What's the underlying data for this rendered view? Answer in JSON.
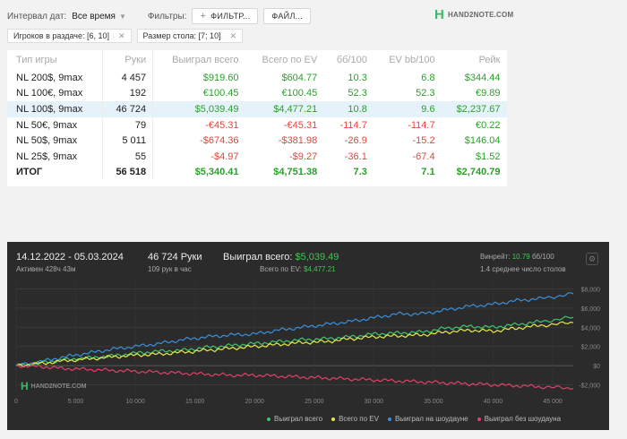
{
  "filters": {
    "date_interval_label": "Интервал дат:",
    "date_interval_value": "Все время",
    "filters_label": "Фильтры:",
    "filter_button": "ФИЛЬТР...",
    "file_button": "ФАЙЛ..."
  },
  "brand": {
    "name": "HAND2NOTE.COM",
    "mark": "H"
  },
  "chips": [
    {
      "label": "Игроков в раздаче: [6, 10]"
    },
    {
      "label": "Размер стола: [7; 10]"
    }
  ],
  "table": {
    "headers": [
      "Тип игры",
      "Руки",
      "Выиграл всего",
      "Всего по EV",
      "бб/100",
      "EV bb/100",
      "Рейк"
    ],
    "rows": [
      [
        "NL 200$, 9max",
        "4 457",
        "$919.60",
        "$604.77",
        "10.3",
        "6.8",
        "$344.44"
      ],
      [
        "NL 100€, 9max",
        "192",
        "€100.45",
        "€100.45",
        "52.3",
        "52.3",
        "€9.89"
      ],
      [
        "NL 100$, 9max",
        "46 724",
        "$5,039.49",
        "$4,477.21",
        "10.8",
        "9.6",
        "$2,237.67"
      ],
      [
        "NL 50€, 9max",
        "79",
        "-€45.31",
        "-€45.31",
        "-114.7",
        "-114.7",
        "€0.22"
      ],
      [
        "NL 50$, 9max",
        "5 011",
        "-$674.36",
        "-$381.98",
        "-26.9",
        "-15.2",
        "$146.04"
      ],
      [
        "NL 25$, 9max",
        "55",
        "-$4.97",
        "-$9.27",
        "-36.1",
        "-67.4",
        "$1.52"
      ]
    ],
    "total": [
      "ИТОГ",
      "56 518",
      "$5,340.41",
      "$4,751.38",
      "7.3",
      "7.1",
      "$2,740.79"
    ]
  },
  "graph": {
    "date_range": "14.12.2022 - 05.03.2024",
    "active": "Активен 428ч 43м",
    "hands": "46 724 Руки",
    "hands_per_hour": "109 рук в час",
    "won_label": "Выиграл всего: ",
    "won_value": "$5,039.49",
    "ev_label": "Всего по EV: ",
    "ev_value": "$4,477.21",
    "winrate_label": "Винрейт: ",
    "winrate_value": "10.79",
    "winrate_unit": " бб/100",
    "tables": "1.4 среднее число столов",
    "legend": [
      {
        "label": "Выиграл всего",
        "color": "#3ec46d"
      },
      {
        "label": "Всего по EV",
        "color": "#e8e84a"
      },
      {
        "label": "Выиграл на шоудауне",
        "color": "#3a8fd9"
      },
      {
        "label": "Выиграл без шоудауна",
        "color": "#e0406a"
      }
    ]
  },
  "chart_data": {
    "type": "line",
    "x_ticks": [
      0,
      5000,
      10000,
      15000,
      20000,
      25000,
      30000,
      35000,
      40000,
      45000
    ],
    "x_tick_labels": [
      "0",
      "5 000",
      "10 000",
      "15 000",
      "20 000",
      "25 000",
      "30 000",
      "35 000",
      "40 000",
      "45 000"
    ],
    "y_ticks": [
      -2000,
      0,
      2000,
      4000,
      6000,
      8000
    ],
    "y_tick_labels": [
      "-$2,000",
      "$0",
      "$2,000",
      "$4,000",
      "$6,000",
      "$8,000"
    ],
    "xlim": [
      0,
      46724
    ],
    "ylim": [
      -2800,
      8800
    ],
    "series": [
      {
        "name": "Выиграл на шоудауне",
        "color": "#3a8fd9",
        "x": [
          0,
          2000,
          4000,
          6000,
          8000,
          10000,
          12000,
          14000,
          16000,
          18000,
          20000,
          22000,
          24000,
          26000,
          28000,
          30000,
          32000,
          34000,
          36000,
          38000,
          40000,
          42000,
          44000,
          46724
        ],
        "values": [
          0,
          400,
          900,
          1300,
          1700,
          2000,
          2300,
          2700,
          3000,
          3200,
          3300,
          3700,
          4000,
          4300,
          4600,
          5000,
          5400,
          5400,
          5800,
          6200,
          6400,
          6800,
          7000,
          7500
        ]
      },
      {
        "name": "Выиграл всего",
        "color": "#3ec46d",
        "x": [
          0,
          2000,
          4000,
          6000,
          8000,
          10000,
          12000,
          14000,
          16000,
          18000,
          20000,
          22000,
          24000,
          26000,
          28000,
          30000,
          32000,
          34000,
          36000,
          38000,
          40000,
          42000,
          44000,
          46724
        ],
        "values": [
          0,
          300,
          600,
          800,
          1000,
          1300,
          1500,
          1600,
          1900,
          2100,
          2300,
          2500,
          2700,
          2800,
          3000,
          3300,
          3400,
          3500,
          3900,
          4100,
          4000,
          4300,
          4600,
          5039
        ]
      },
      {
        "name": "Всего по EV",
        "color": "#e8e84a",
        "x": [
          0,
          2000,
          4000,
          6000,
          8000,
          10000,
          12000,
          14000,
          16000,
          18000,
          20000,
          22000,
          24000,
          26000,
          28000,
          30000,
          32000,
          34000,
          36000,
          38000,
          40000,
          42000,
          44000,
          46724
        ],
        "values": [
          0,
          200,
          500,
          700,
          900,
          1100,
          1200,
          1400,
          1600,
          1800,
          2000,
          2200,
          2400,
          2500,
          2800,
          3000,
          3100,
          3200,
          3500,
          3700,
          3600,
          3900,
          4200,
          4477
        ]
      },
      {
        "name": "Выиграл без шоудауна",
        "color": "#e0406a",
        "x": [
          0,
          2000,
          4000,
          6000,
          8000,
          10000,
          12000,
          14000,
          16000,
          18000,
          20000,
          22000,
          24000,
          26000,
          28000,
          30000,
          32000,
          34000,
          36000,
          38000,
          40000,
          42000,
          44000,
          46724
        ],
        "values": [
          0,
          -100,
          -300,
          -400,
          -500,
          -600,
          -700,
          -800,
          -900,
          -1000,
          -1000,
          -1100,
          -1200,
          -1300,
          -1400,
          -1500,
          -1600,
          -1700,
          -1800,
          -1900,
          -2000,
          -2100,
          -2200,
          -2400
        ]
      }
    ]
  }
}
